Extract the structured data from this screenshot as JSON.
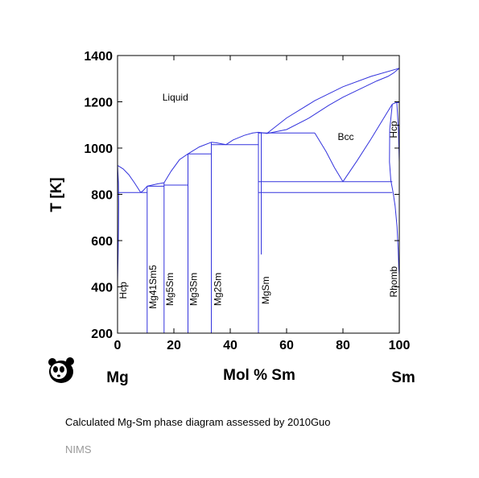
{
  "chart_data": {
    "type": "line",
    "title": "",
    "xlabel": "Mol % Sm",
    "ylabel": "T [K]",
    "xlim": [
      0,
      100
    ],
    "ylim": [
      200,
      1400
    ],
    "x_ticks": [
      0,
      20,
      40,
      60,
      80,
      100
    ],
    "y_ticks": [
      200,
      400,
      600,
      800,
      1000,
      1200,
      1400
    ],
    "grid": false,
    "element_left": "Mg",
    "element_right": "Sm",
    "line_color": "#3333dd",
    "phase_labels": [
      {
        "text": "Liquid",
        "x": 20.5,
        "y": 1205,
        "rotate": false
      },
      {
        "text": "Bcc",
        "x": 81,
        "y": 1035,
        "rotate": false
      },
      {
        "text": "Hcp",
        "x": 98,
        "y": 1080,
        "rotate": true
      },
      {
        "text": "Hcp",
        "x": 2,
        "y": 385,
        "rotate": true
      },
      {
        "text": "Mg41Sm5",
        "x": 12.5,
        "y": 400,
        "rotate": true
      },
      {
        "text": "Mg5Sm",
        "x": 18.5,
        "y": 390,
        "rotate": true
      },
      {
        "text": "Mg3Sm",
        "x": 27,
        "y": 390,
        "rotate": true
      },
      {
        "text": "Mg2Sm",
        "x": 35.5,
        "y": 390,
        "rotate": true
      },
      {
        "text": "MgSm",
        "x": 52.5,
        "y": 385,
        "rotate": true
      },
      {
        "text": "Rhomb",
        "x": 98,
        "y": 422,
        "rotate": true
      }
    ],
    "series": [
      {
        "x": [
          0,
          2,
          4,
          6,
          8,
          8.2
        ],
        "y": [
          925,
          910,
          885,
          850,
          812,
          808
        ]
      },
      {
        "x": [
          8.2,
          9,
          10.5
        ],
        "y": [
          808,
          815,
          835
        ]
      },
      {
        "x": [
          10.5,
          14,
          16.5
        ],
        "y": [
          835,
          845,
          850
        ]
      },
      {
        "x": [
          16.5,
          19,
          22,
          25
        ],
        "y": [
          850,
          900,
          950,
          975
        ]
      },
      {
        "x": [
          25,
          29,
          33.3
        ],
        "y": [
          975,
          1005,
          1025
        ]
      },
      {
        "x": [
          33.3,
          35,
          37,
          38.5
        ],
        "y": [
          1025,
          1023,
          1018,
          1015
        ]
      },
      {
        "x": [
          38.5,
          41,
          45,
          48,
          50,
          52,
          53
        ],
        "y": [
          1015,
          1035,
          1055,
          1065,
          1068,
          1065,
          1063
        ]
      },
      {
        "x": [
          53,
          60,
          70,
          80,
          90,
          100
        ],
        "y": [
          1063,
          1130,
          1205,
          1265,
          1310,
          1345
        ]
      },
      {
        "x": [
          53,
          60,
          68,
          75,
          80,
          86,
          92,
          96,
          98,
          100
        ],
        "y": [
          1063,
          1080,
          1130,
          1185,
          1220,
          1255,
          1290,
          1310,
          1325,
          1345
        ]
      },
      {
        "x": [
          70,
          74,
          77,
          80
        ],
        "y": [
          1065,
          985,
          915,
          855
        ]
      },
      {
        "x": [
          80,
          85,
          90,
          94,
          97.5
        ],
        "y": [
          855,
          945,
          1040,
          1120,
          1190
        ]
      },
      {
        "x": [
          97.5,
          98.5,
          100
        ],
        "y": [
          1190,
          1195,
          1198
        ]
      },
      {
        "x": [
          97.5,
          96.6,
          96.5,
          97,
          97.8
        ],
        "y": [
          1190,
          1080,
          940,
          860,
          808
        ]
      },
      {
        "x": [
          99.1,
          99.7,
          100
        ],
        "y": [
          1198,
          1080,
          940
        ]
      },
      {
        "x": [
          97.8,
          98.5,
          99.2,
          99.6,
          99.8,
          100
        ],
        "y": [
          808,
          750,
          660,
          560,
          490,
          450
        ]
      },
      {
        "x": [
          0,
          0.3,
          0.4,
          0.35,
          0.2,
          0
        ],
        "y": [
          925,
          850,
          760,
          650,
          540,
          420
        ]
      },
      {
        "x": [
          0,
          10.5
        ],
        "y": [
          808,
          808
        ]
      },
      {
        "x": [
          10.5,
          16.5
        ],
        "y": [
          835,
          835
        ]
      },
      {
        "x": [
          16.5,
          25
        ],
        "y": [
          840,
          840
        ]
      },
      {
        "x": [
          25,
          33.3
        ],
        "y": [
          975,
          975
        ]
      },
      {
        "x": [
          33.3,
          50
        ],
        "y": [
          1015,
          1015
        ]
      },
      {
        "x": [
          50,
          70
        ],
        "y": [
          1065,
          1065
        ]
      },
      {
        "x": [
          50,
          97.5
        ],
        "y": [
          855,
          855
        ]
      },
      {
        "x": [
          50,
          97.5
        ],
        "y": [
          808,
          808
        ]
      },
      {
        "x": [
          10.5,
          10.5
        ],
        "y": [
          200,
          835
        ]
      },
      {
        "x": [
          16.5,
          16.5
        ],
        "y": [
          200,
          850
        ]
      },
      {
        "x": [
          25,
          25
        ],
        "y": [
          200,
          975
        ]
      },
      {
        "x": [
          33.3,
          33.3
        ],
        "y": [
          200,
          1025
        ]
      },
      {
        "x": [
          50,
          50
        ],
        "y": [
          200,
          1068
        ]
      },
      {
        "x": [
          51,
          51
        ],
        "y": [
          808,
          1068
        ]
      },
      {
        "x": [
          51,
          51
        ],
        "y": [
          540,
          808
        ]
      }
    ]
  },
  "caption": "Calculated Mg-Sm phase diagram assessed by 2010Guo",
  "source": "NIMS",
  "logo_icon": "panda-icon"
}
